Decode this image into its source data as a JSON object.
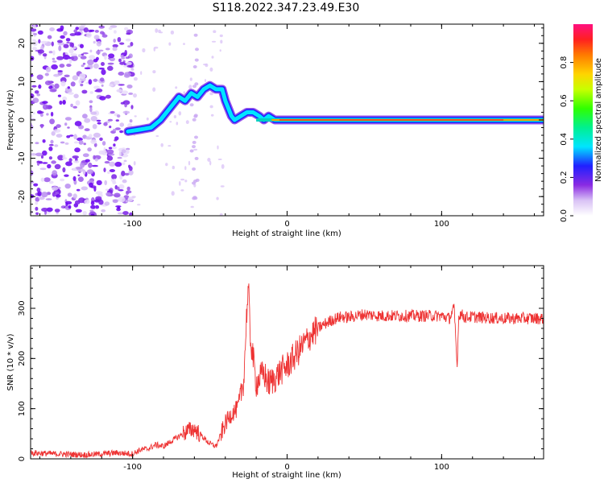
{
  "title": "S118.2022.347.23.49.E30",
  "chart_data": [
    {
      "type": "heatmap",
      "xlabel": "Height of straight line (km)",
      "ylabel": "Frequency (Hz)",
      "xlim": [
        -166,
        166
      ],
      "ylim": [
        -25,
        25
      ],
      "xticks": [
        -100,
        0,
        100
      ],
      "yticks": [
        -20,
        -10,
        0,
        10,
        20
      ],
      "colorbar": {
        "label": "Normalized spectral amplitude",
        "range": [
          0,
          1
        ],
        "ticks": [
          "0.0",
          "0.2",
          "0.4",
          "0.6",
          "0.8"
        ]
      },
      "ridge": {
        "x": [
          -103,
          -95,
          -88,
          -82,
          -76,
          -70,
          -66,
          -62,
          -58,
          -54,
          -50,
          -46,
          -42,
          -40,
          -38,
          -36,
          -34,
          -30,
          -26,
          -22,
          -18,
          -15,
          -12,
          -8,
          0,
          20,
          60,
          80,
          100,
          166
        ],
        "y": [
          -3,
          -2.5,
          -2,
          0,
          3,
          6,
          5,
          7,
          6,
          8,
          9,
          8,
          8,
          5,
          3,
          1,
          0,
          1,
          2,
          2,
          1,
          0,
          1,
          0,
          0,
          0,
          0,
          0,
          0,
          0
        ]
      }
    },
    {
      "type": "line",
      "xlabel": "Height of straight line (km)",
      "ylabel": "SNR (10 * v/v)",
      "xlim": [
        -166,
        166
      ],
      "ylim": [
        0,
        385
      ],
      "xticks": [
        -100,
        0,
        100
      ],
      "yticks": [
        0,
        100,
        200,
        300
      ],
      "series": [
        {
          "color": "#ee3333",
          "x": [
            -166,
            -150,
            -130,
            -110,
            -100,
            -95,
            -90,
            -85,
            -80,
            -75,
            -70,
            -65,
            -60,
            -55,
            -50,
            -46,
            -44,
            -40,
            -36,
            -32,
            -28,
            -26,
            -25,
            -24,
            -22,
            -20,
            -18,
            -15,
            -12,
            -8,
            -4,
            0,
            5,
            10,
            15,
            20,
            25,
            30,
            35,
            40,
            45,
            50,
            60,
            70,
            80,
            90,
            100,
            105,
            108,
            109,
            110,
            111,
            112,
            115,
            120,
            130,
            140,
            150,
            166
          ],
          "y": [
            12,
            10,
            8,
            12,
            10,
            18,
            20,
            28,
            25,
            35,
            45,
            55,
            60,
            45,
            30,
            25,
            40,
            70,
            90,
            100,
            160,
            300,
            340,
            250,
            200,
            150,
            160,
            170,
            150,
            160,
            175,
            185,
            205,
            225,
            245,
            260,
            270,
            278,
            283,
            282,
            285,
            288,
            285,
            285,
            285,
            285,
            285,
            280,
            300,
            250,
            180,
            280,
            290,
            282,
            283,
            281,
            280,
            280,
            280
          ]
        }
      ]
    }
  ]
}
